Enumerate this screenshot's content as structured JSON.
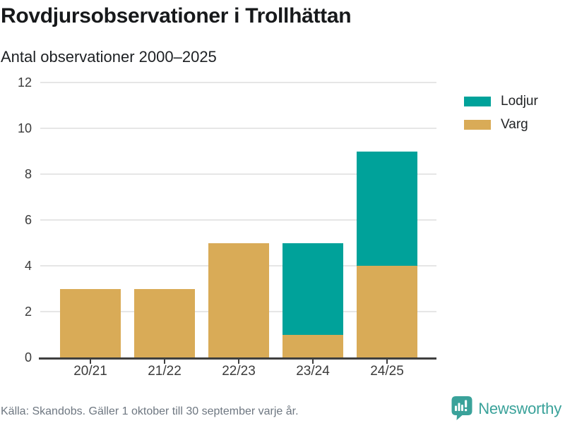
{
  "header": {
    "title": "Rovdjursobservationer i Trollhättan",
    "subtitle": "Antal observationer 2000–2025"
  },
  "chart_data": {
    "type": "bar",
    "stacked": true,
    "categories": [
      "20/21",
      "21/22",
      "22/23",
      "23/24",
      "24/25"
    ],
    "series": [
      {
        "name": "Lodjur",
        "color": "#00a29a",
        "values": [
          0,
          0,
          0,
          4,
          5
        ]
      },
      {
        "name": "Varg",
        "color": "#d9ab57",
        "values": [
          3,
          3,
          5,
          1,
          4
        ]
      }
    ],
    "stack_order_bottom_to_top": [
      "Varg",
      "Lodjur"
    ],
    "title": "Rovdjursobservationer i Trollhättan",
    "subtitle": "Antal observationer 2000–2025",
    "xlabel": "",
    "ylabel": "",
    "ylim": [
      0,
      12
    ],
    "yticks": [
      0,
      2,
      4,
      6,
      8,
      10,
      12
    ],
    "grid": true,
    "legend_position": "top-right"
  },
  "footer": {
    "source": "Källa: Skandobs. Gäller 1 oktober till 30 september varje år.",
    "brand": "Newsworthy"
  },
  "colors": {
    "lodjur": "#00a29a",
    "varg": "#d9ab57",
    "brand_teal": "#3aa29a",
    "axis": "#3f3f3f",
    "gridline": "#e6e6e6",
    "source_text": "#6e7781"
  }
}
